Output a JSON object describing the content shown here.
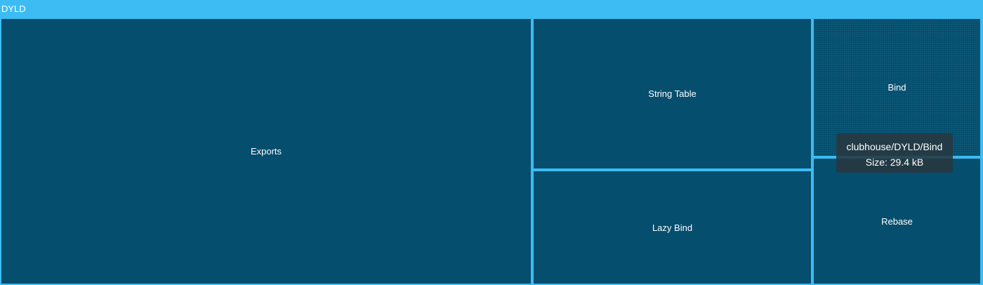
{
  "chart_data": {
    "type": "treemap",
    "root": "DYLD",
    "nodes": [
      {
        "name": "Exports",
        "value": 0.54,
        "unit": "fraction of total area"
      },
      {
        "name": "String Table",
        "value": 0.17
      },
      {
        "name": "Lazy Bind",
        "value": 0.13
      },
      {
        "name": "Bind",
        "value": 0.09
      },
      {
        "name": "Rebase",
        "value": 0.07
      }
    ],
    "tooltip": {
      "path": "clubhouse/DYLD/Bind",
      "size": "Size: 29.4 kB"
    }
  },
  "colors": {
    "background": "#3cbcf2",
    "cell": "#054e6e",
    "text": "#ffffff"
  }
}
